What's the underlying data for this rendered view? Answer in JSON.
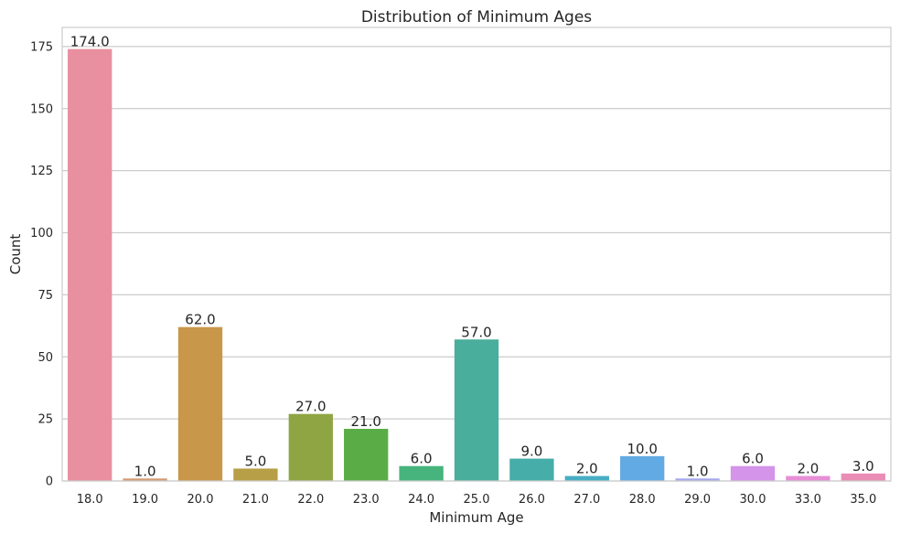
{
  "chart_data": {
    "type": "bar",
    "title": "Distribution of Minimum Ages",
    "xlabel": "Minimum Age",
    "ylabel": "Count",
    "categories": [
      "18.0",
      "19.0",
      "20.0",
      "21.0",
      "22.0",
      "23.0",
      "24.0",
      "25.0",
      "26.0",
      "27.0",
      "28.0",
      "29.0",
      "30.0",
      "33.0",
      "35.0"
    ],
    "values": [
      174,
      1,
      62,
      5,
      27,
      21,
      6,
      57,
      9,
      2,
      10,
      1,
      6,
      2,
      3
    ],
    "value_labels": [
      "174.0",
      "1.0",
      "62.0",
      "5.0",
      "27.0",
      "21.0",
      "6.0",
      "57.0",
      "9.0",
      "2.0",
      "10.0",
      "1.0",
      "6.0",
      "2.0",
      "3.0"
    ],
    "ylim": [
      0,
      182.7
    ],
    "yticks": [
      0,
      25,
      50,
      75,
      100,
      125,
      150,
      175
    ],
    "ytick_labels": [
      "0",
      "25",
      "50",
      "75",
      "100",
      "125",
      "150",
      "175"
    ],
    "grid": true,
    "colors": [
      "#e8909f",
      "#d39a73",
      "#c8974a",
      "#b79f47",
      "#8fa544",
      "#5aad46",
      "#46b47c",
      "#49ae9b",
      "#46ada8",
      "#48aec4",
      "#62aae3",
      "#a5a8ee",
      "#d394ea",
      "#e78ed6",
      "#e98db5"
    ]
  }
}
